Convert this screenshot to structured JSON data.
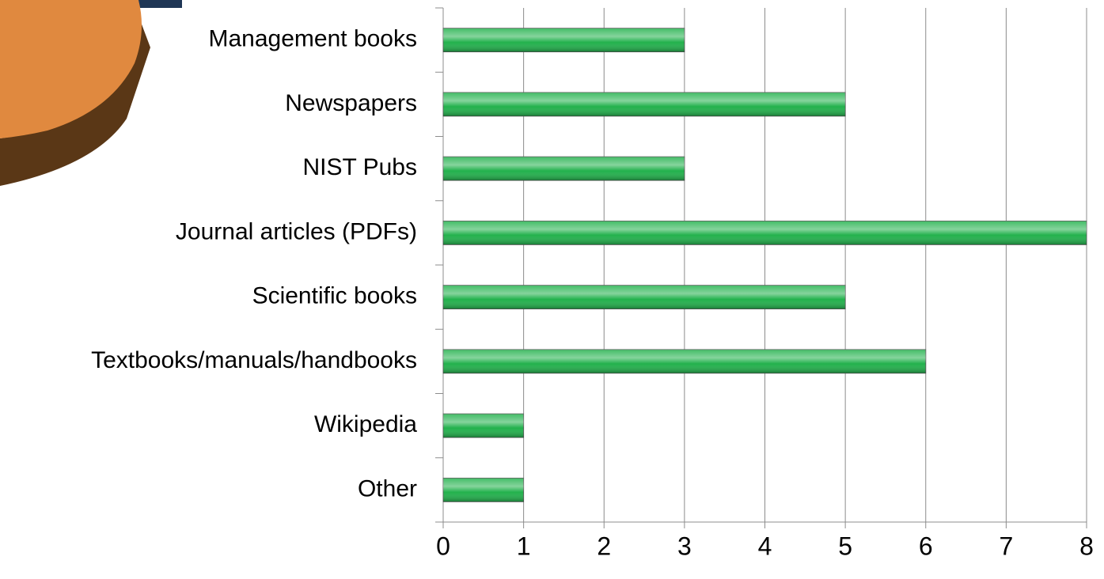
{
  "chart_data": {
    "type": "bar",
    "orientation": "horizontal",
    "categories": [
      "Management books",
      "Newspapers",
      "NIST Pubs",
      "Journal articles (PDFs)",
      "Scientific books",
      "Textbooks/manuals/handbooks",
      "Wikipedia",
      "Other"
    ],
    "values": [
      3,
      5,
      3,
      8,
      5,
      6,
      1,
      1
    ],
    "color": "#22b14c",
    "xlim": [
      0,
      8
    ],
    "xticks": [
      0,
      1,
      2,
      3,
      4,
      5,
      6,
      7,
      8
    ],
    "grid": true
  }
}
